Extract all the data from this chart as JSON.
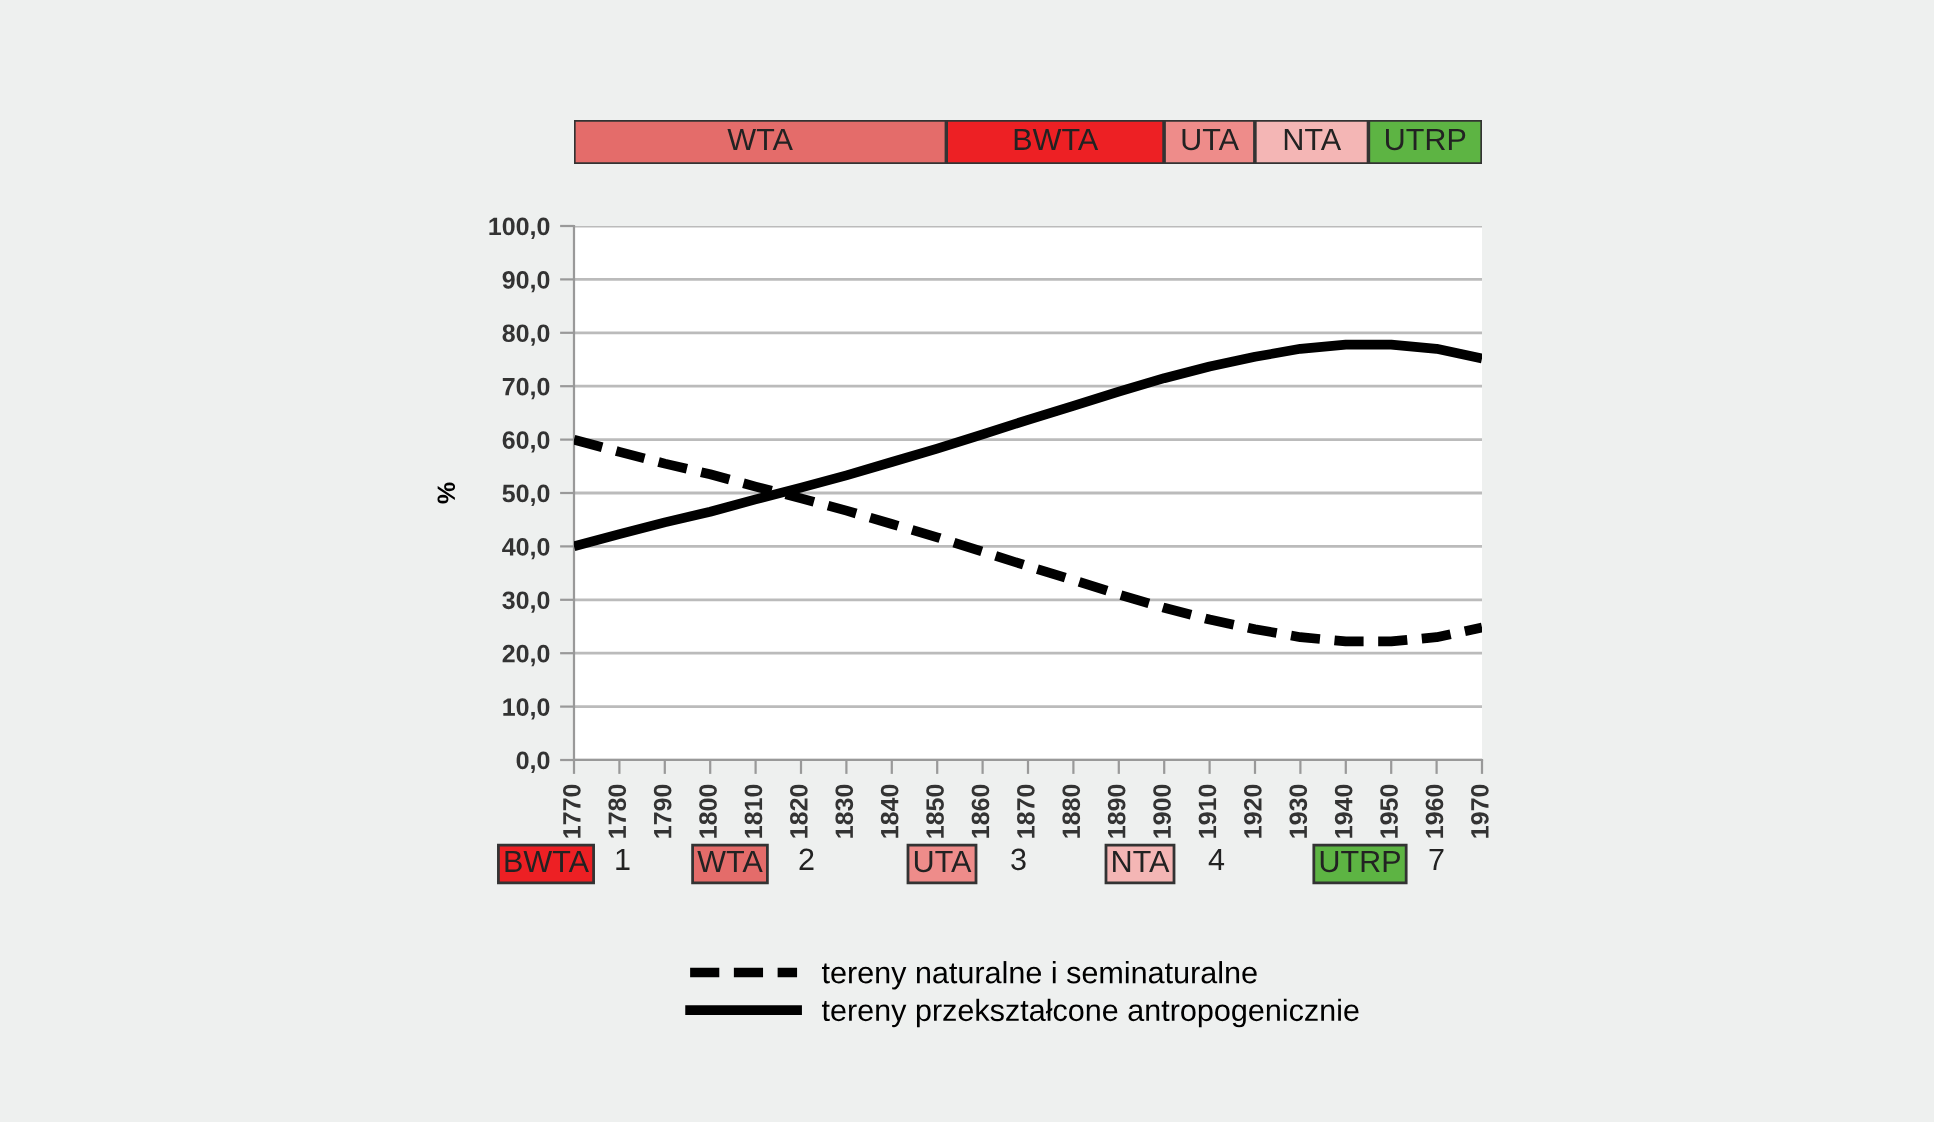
{
  "chart_data": [
    {
      "type": "bar",
      "orientation": "horizontal",
      "categories": [
        null
      ],
      "xlim": [
        1770,
        1970
      ],
      "series": [
        {
          "name": "BWTA",
          "color": "#ed2024",
          "base": [
            1852
          ],
          "values": [
            48
          ]
        },
        {
          "name": "WTA",
          "color": "#e46c6a",
          "base": [
            1770
          ],
          "values": [
            82
          ]
        },
        {
          "name": "UTA",
          "color": "#ee8c8a",
          "base": [
            1900
          ],
          "values": [
            20
          ]
        },
        {
          "name": "NTA",
          "color": "#f4b6b5",
          "base": [
            1920
          ],
          "values": [
            25
          ]
        },
        {
          "name": "UTRP",
          "color": "#5db443",
          "base": [
            1945
          ],
          "values": [
            25
          ]
        }
      ],
      "annotations": [
        "1",
        "2",
        "3",
        "4",
        "7"
      ]
    },
    {
      "type": "line",
      "ylabel": "%",
      "x": [
        1770,
        1780,
        1790,
        1800,
        1810,
        1820,
        1830,
        1840,
        1850,
        1860,
        1870,
        1880,
        1890,
        1900,
        1910,
        1920,
        1930,
        1940,
        1950,
        1960,
        1970
      ],
      "series": [
        {
          "name": "tereny naturalne i seminaturalne",
          "color": "#000000",
          "line_style": "dashed",
          "values": [
            60,
            57.7,
            55.5,
            53.5,
            51.2,
            49,
            46.7,
            44.2,
            41.7,
            39,
            36.3,
            33.7,
            31,
            28.5,
            26.3,
            24.5,
            23,
            22.2,
            22.2,
            23,
            24.8
          ]
        },
        {
          "name": "tereny przekształcone antropogenicznie",
          "color": "#000000",
          "line_style": "solid",
          "values": [
            40,
            42.3,
            44.5,
            46.5,
            48.8,
            51,
            53.3,
            55.8,
            58.3,
            61,
            63.7,
            66.3,
            69,
            71.5,
            73.7,
            75.5,
            77,
            77.8,
            77.8,
            77,
            75.2
          ]
        }
      ],
      "xlim": [
        1770,
        1970
      ],
      "xticks": [
        1770,
        1780,
        1790,
        1800,
        1810,
        1820,
        1830,
        1840,
        1850,
        1860,
        1870,
        1880,
        1890,
        1900,
        1910,
        1920,
        1930,
        1940,
        1950,
        1960,
        1970
      ],
      "ylim": [
        0,
        100
      ],
      "yticks": [
        {
          "value": 0,
          "label": "0,0"
        },
        {
          "value": 10,
          "label": "10,0"
        },
        {
          "value": 20,
          "label": "20,0"
        },
        {
          "value": 30,
          "label": "30,0"
        },
        {
          "value": 40,
          "label": "40,0"
        },
        {
          "value": 50,
          "label": "50,0"
        },
        {
          "value": 60,
          "label": "60,0"
        },
        {
          "value": 70,
          "label": "70,0"
        },
        {
          "value": 80,
          "label": "80,0"
        },
        {
          "value": 90,
          "label": "90,0"
        },
        {
          "value": 100,
          "label": "100,0"
        }
      ],
      "grid": "y",
      "legend": "bottom",
      "marker": "none"
    }
  ]
}
